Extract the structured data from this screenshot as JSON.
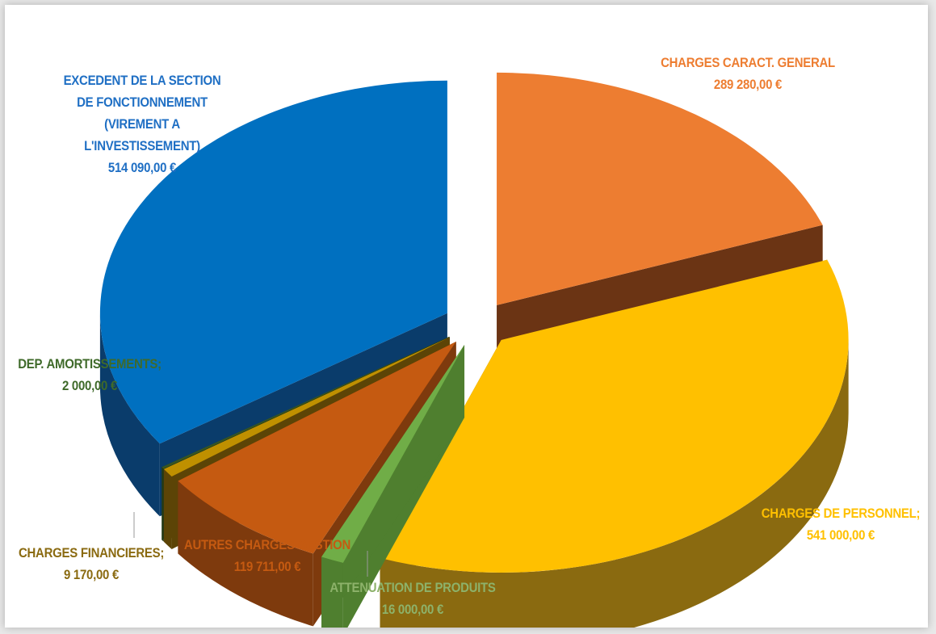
{
  "chart_data": {
    "type": "pie",
    "style": "3d-exploded",
    "slices": [
      {
        "name": "CHARGES CARACT. GENERAL",
        "value": 289280.0,
        "label_value": "289 280,00 €",
        "color": "#ED7D31",
        "side_color": "#6B3414"
      },
      {
        "name": "CHARGES DE PERSONNEL;",
        "value": 541000.0,
        "label_value": "541 000,00 €",
        "color": "#FFC000",
        "side_color": "#8A6A10"
      },
      {
        "name": "ATTENUATION DE PRODUITS",
        "value": 16000.0,
        "label_value": "16 000,00 €",
        "color": "#70AD47",
        "side_color": "#4F7F2F"
      },
      {
        "name": "AUTRES CHARGES GESTION",
        "value": 119711.0,
        "label_value": "119 711,00 €",
        "color": "#C55A11",
        "side_color": "#7E3A0D"
      },
      {
        "name": "CHARGES FINANCIERES;",
        "value": 9170.0,
        "label_value": "9 170,00 €",
        "color": "#BF9000",
        "side_color": "#5C4406"
      },
      {
        "name": "DEP. AMORTISSEMENTS;",
        "value": 2000.0,
        "label_value": "2 000,00  €",
        "color": "#375623",
        "side_color": "#243A17"
      },
      {
        "name": "EXCEDENT DE LA SECTION\nDE FONCTIONNEMENT\n(VIREMENT A\nL'INVESTISSEMENT)",
        "value": 514090.0,
        "label_value": "514 090,00 €",
        "color": "#0070C0",
        "side_color": "#0A3C6B"
      }
    ],
    "label_colors": {
      "CHARGES CARACT. GENERAL": "#ED7D31",
      "CHARGES DE PERSONNEL;": "#FFC000",
      "ATTENUATION DE PRODUITS": "#8DB26A",
      "AUTRES CHARGES GESTION": "#C55A11",
      "CHARGES FINANCIERES;": "#8A6A10",
      "DEP. AMORTISSEMENTS;": "#3F6A2A",
      "EXCEDENT": "#1F6FC4"
    },
    "legend": "none"
  }
}
